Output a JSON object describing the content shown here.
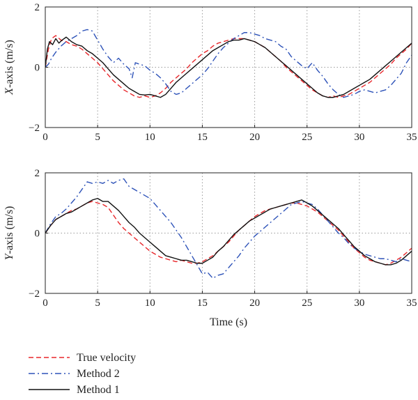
{
  "chart_data": [
    {
      "type": "line",
      "xlabel": "",
      "ylabel": "X-axis (m/s)",
      "ylabel_prefix": "X",
      "ylabel_rest": "-axis (m/s)",
      "xlim": [
        0,
        35
      ],
      "ylim": [
        -2,
        2
      ],
      "xticks": [
        0,
        5,
        10,
        15,
        20,
        25,
        30,
        35
      ],
      "yticks": [
        -2,
        0,
        2
      ],
      "grid": "dotted",
      "series": [
        {
          "name": "True velocity",
          "color": "#e8262a",
          "dash": "dashed",
          "x": [
            0,
            0.3,
            0.6,
            1,
            1.5,
            2,
            2.5,
            3,
            3.5,
            4,
            4.5,
            5,
            5.5,
            6,
            6.5,
            7,
            7.5,
            8,
            8.5,
            9,
            9.5,
            10,
            10.5,
            11,
            11.5,
            12,
            12.5,
            13,
            13.5,
            14,
            14.5,
            15,
            15.5,
            16,
            16.5,
            17,
            17.5,
            18,
            18.5,
            19,
            19.5,
            20,
            20.5,
            21,
            21.5,
            22,
            22.5,
            23,
            23.5,
            24,
            24.5,
            25,
            25.5,
            26,
            26.5,
            27,
            27.5,
            28,
            28.5,
            29,
            29.5,
            30,
            30.5,
            31,
            31.5,
            32,
            32.5,
            33,
            33.5,
            34,
            34.5,
            35
          ],
          "y": [
            0,
            0.6,
            0.95,
            1.05,
            0.9,
            0.85,
            0.75,
            0.7,
            0.6,
            0.45,
            0.3,
            0.15,
            -0.05,
            -0.25,
            -0.45,
            -0.6,
            -0.75,
            -0.85,
            -0.95,
            -1.0,
            -0.95,
            -1.0,
            -0.95,
            -0.85,
            -0.7,
            -0.5,
            -0.35,
            -0.2,
            -0.05,
            0.15,
            0.3,
            0.45,
            0.55,
            0.7,
            0.8,
            0.85,
            0.9,
            0.95,
            0.95,
            0.95,
            0.9,
            0.85,
            0.75,
            0.65,
            0.5,
            0.35,
            0.2,
            0.0,
            -0.15,
            -0.3,
            -0.45,
            -0.6,
            -0.75,
            -0.85,
            -0.95,
            -1.0,
            -0.95,
            -1.0,
            -0.95,
            -0.9,
            -0.8,
            -0.7,
            -0.6,
            -0.5,
            -0.35,
            -0.2,
            -0.05,
            0.1,
            0.3,
            0.45,
            0.6,
            0.8
          ]
        },
        {
          "name": "Method 2",
          "color": "#2d52b8",
          "dash": "dashdot",
          "x": [
            0,
            0.3,
            0.6,
            1,
            1.5,
            2,
            2.5,
            3,
            3.5,
            4,
            4.5,
            5,
            5.5,
            6,
            6.5,
            7,
            7.5,
            8,
            8.3,
            8.6,
            9,
            9.5,
            10,
            10.5,
            11,
            11.5,
            12,
            12.5,
            13,
            13.5,
            14,
            14.5,
            15,
            15.5,
            16,
            16.5,
            17,
            17.5,
            18,
            18.5,
            19,
            19.5,
            20,
            20.5,
            21,
            21.5,
            22,
            22.5,
            23,
            23.5,
            24,
            24.5,
            25,
            25.5,
            26,
            26.5,
            27,
            27.5,
            28,
            28.5,
            29,
            29.5,
            30,
            30.5,
            31,
            31.5,
            32,
            32.5,
            33,
            33.5,
            34,
            34.5,
            35
          ],
          "y": [
            0,
            0.1,
            0.3,
            0.5,
            0.7,
            0.85,
            0.95,
            1.05,
            1.2,
            1.25,
            1.2,
            0.9,
            0.6,
            0.35,
            0.15,
            0.3,
            0.1,
            -0.05,
            -0.35,
            0.15,
            0.1,
            0.05,
            -0.1,
            -0.2,
            -0.35,
            -0.55,
            -0.8,
            -0.9,
            -0.85,
            -0.7,
            -0.55,
            -0.4,
            -0.25,
            -0.05,
            0.2,
            0.45,
            0.65,
            0.8,
            0.95,
            1.05,
            1.15,
            1.15,
            1.1,
            1.05,
            0.95,
            0.9,
            0.85,
            0.7,
            0.6,
            0.35,
            0.2,
            0.05,
            -0.05,
            0.15,
            -0.1,
            -0.3,
            -0.55,
            -0.75,
            -0.9,
            -1.0,
            -0.95,
            -0.9,
            -0.8,
            -0.75,
            -0.8,
            -0.85,
            -0.8,
            -0.75,
            -0.6,
            -0.4,
            -0.2,
            0.15,
            0.4
          ]
        },
        {
          "name": "Method 1",
          "color": "#111111",
          "dash": "solid",
          "x": [
            0,
            0.2,
            0.4,
            0.7,
            1,
            1.3,
            1.6,
            2,
            2.5,
            3,
            3.5,
            4,
            4.5,
            5,
            5.5,
            6,
            6.5,
            7,
            7.5,
            8,
            8.5,
            9,
            9.5,
            10,
            10.5,
            11,
            11.5,
            12,
            12.5,
            13,
            13.5,
            14,
            14.5,
            15,
            15.5,
            16,
            16.5,
            17,
            17.5,
            18,
            18.5,
            19,
            19.5,
            20,
            20.5,
            21,
            21.5,
            22,
            22.5,
            23,
            23.5,
            24,
            24.5,
            25,
            25.5,
            26,
            26.5,
            27,
            27.5,
            28,
            28.5,
            29,
            29.5,
            30,
            30.5,
            31,
            31.5,
            32,
            32.5,
            33,
            33.5,
            34,
            34.5,
            35
          ],
          "y": [
            0,
            0.6,
            0.85,
            0.75,
            0.95,
            0.8,
            0.9,
            1.0,
            0.85,
            0.75,
            0.7,
            0.55,
            0.45,
            0.3,
            0.15,
            -0.05,
            -0.25,
            -0.4,
            -0.55,
            -0.7,
            -0.8,
            -0.9,
            -0.92,
            -0.9,
            -0.95,
            -1.0,
            -0.9,
            -0.7,
            -0.5,
            -0.35,
            -0.2,
            -0.05,
            0.1,
            0.25,
            0.4,
            0.55,
            0.65,
            0.75,
            0.85,
            0.9,
            0.9,
            0.95,
            0.9,
            0.85,
            0.75,
            0.65,
            0.5,
            0.35,
            0.2,
            0.05,
            -0.1,
            -0.25,
            -0.4,
            -0.55,
            -0.7,
            -0.85,
            -0.95,
            -1.0,
            -1.0,
            -0.95,
            -0.9,
            -0.8,
            -0.7,
            -0.6,
            -0.5,
            -0.4,
            -0.25,
            -0.1,
            0.05,
            0.2,
            0.35,
            0.5,
            0.65,
            0.8
          ]
        }
      ]
    },
    {
      "type": "line",
      "xlabel": "Time (s)",
      "ylabel": "Y-axis (m/s)",
      "ylabel_prefix": "Y",
      "ylabel_rest": "-axis (m/s)",
      "xlim": [
        0,
        35
      ],
      "ylim": [
        -2,
        2
      ],
      "xticks": [
        0,
        5,
        10,
        15,
        20,
        25,
        30,
        35
      ],
      "yticks": [
        -2,
        0,
        2
      ],
      "grid": "dotted",
      "series": [
        {
          "name": "True velocity",
          "color": "#e8262a",
          "dash": "dashed",
          "x": [
            0,
            0.5,
            1,
            1.5,
            2,
            2.5,
            3,
            3.5,
            4,
            4.5,
            5,
            5.5,
            6,
            6.5,
            7,
            7.5,
            8,
            8.5,
            9,
            9.5,
            10,
            10.5,
            11,
            11.5,
            12,
            12.5,
            13,
            13.5,
            14,
            14.5,
            15,
            15.5,
            16,
            16.5,
            17,
            17.5,
            18,
            18.5,
            19,
            19.5,
            20,
            20.5,
            21,
            21.5,
            22,
            22.5,
            23,
            23.5,
            24,
            24.5,
            25,
            25.5,
            26,
            26.5,
            27,
            27.5,
            28,
            28.5,
            29,
            29.5,
            30,
            30.5,
            31,
            31.5,
            32,
            32.5,
            33,
            33.5,
            34,
            34.5,
            35
          ],
          "y": [
            0,
            0.25,
            0.45,
            0.55,
            0.65,
            0.75,
            0.8,
            0.9,
            1.0,
            1.05,
            1.0,
            0.95,
            0.85,
            0.6,
            0.35,
            0.15,
            0.0,
            -0.15,
            -0.3,
            -0.45,
            -0.6,
            -0.7,
            -0.8,
            -0.85,
            -0.9,
            -0.95,
            -0.9,
            -0.95,
            -1.0,
            -1.0,
            -0.95,
            -0.85,
            -0.75,
            -0.6,
            -0.45,
            -0.3,
            -0.1,
            0.1,
            0.25,
            0.4,
            0.55,
            0.65,
            0.75,
            0.8,
            0.85,
            0.9,
            0.95,
            1.0,
            1.0,
            0.95,
            0.9,
            0.8,
            0.7,
            0.55,
            0.4,
            0.25,
            0.1,
            -0.1,
            -0.3,
            -0.5,
            -0.65,
            -0.8,
            -0.9,
            -0.95,
            -1.0,
            -1.05,
            -1.0,
            -0.9,
            -0.8,
            -0.65,
            -0.5
          ]
        },
        {
          "name": "Method 2",
          "color": "#2d52b8",
          "dash": "dashdot",
          "x": [
            0,
            0.5,
            1,
            1.5,
            2,
            2.5,
            3,
            3.5,
            4,
            4.5,
            5,
            5.5,
            6,
            6.5,
            7,
            7.5,
            8,
            8.5,
            9,
            9.5,
            10,
            10.5,
            11,
            11.5,
            12,
            12.5,
            13,
            13.5,
            14,
            14.5,
            15,
            15.5,
            16,
            16.5,
            17,
            17.5,
            18,
            18.5,
            19,
            19.5,
            20,
            20.5,
            21,
            21.5,
            22,
            22.5,
            23,
            23.5,
            24,
            24.5,
            25,
            25.5,
            26,
            26.5,
            27,
            27.5,
            28,
            28.5,
            29,
            29.5,
            30,
            30.5,
            31,
            31.5,
            32,
            32.5,
            33,
            33.5,
            34,
            34.5,
            35
          ],
          "y": [
            0,
            0.3,
            0.55,
            0.65,
            0.8,
            1.0,
            1.2,
            1.45,
            1.7,
            1.65,
            1.7,
            1.65,
            1.75,
            1.65,
            1.75,
            1.8,
            1.55,
            1.45,
            1.35,
            1.25,
            1.15,
            0.95,
            0.75,
            0.55,
            0.35,
            0.1,
            -0.15,
            -0.45,
            -0.75,
            -1.05,
            -1.35,
            -1.3,
            -1.5,
            -1.4,
            -1.35,
            -1.15,
            -0.95,
            -0.75,
            -0.5,
            -0.3,
            -0.1,
            0.05,
            0.2,
            0.35,
            0.5,
            0.65,
            0.8,
            0.95,
            1.0,
            1.05,
            1.0,
            0.95,
            0.8,
            0.6,
            0.4,
            0.2,
            0.0,
            -0.15,
            -0.35,
            -0.5,
            -0.6,
            -0.7,
            -0.75,
            -0.8,
            -0.85,
            -0.85,
            -0.9,
            -0.95,
            -0.85,
            -0.9,
            -0.95
          ]
        },
        {
          "name": "Method 1",
          "color": "#111111",
          "dash": "solid",
          "x": [
            0,
            0.5,
            1,
            1.5,
            2,
            2.5,
            3,
            3.5,
            4,
            4.5,
            5,
            5.5,
            6,
            6.5,
            7,
            7.5,
            8,
            8.5,
            9,
            9.5,
            10,
            10.5,
            11,
            11.5,
            12,
            12.5,
            13,
            13.5,
            14,
            14.5,
            15,
            15.5,
            16,
            16.5,
            17,
            17.5,
            18,
            18.5,
            19,
            19.5,
            20,
            20.5,
            21,
            21.5,
            22,
            22.5,
            23,
            23.5,
            24,
            24.5,
            25,
            25.5,
            26,
            26.5,
            27,
            27.5,
            28,
            28.5,
            29,
            29.5,
            30,
            30.5,
            31,
            31.5,
            32,
            32.5,
            33,
            33.5,
            34,
            34.5,
            35
          ],
          "y": [
            0,
            0.25,
            0.45,
            0.55,
            0.65,
            0.7,
            0.8,
            0.9,
            1.0,
            1.1,
            1.15,
            1.05,
            1.05,
            0.9,
            0.75,
            0.55,
            0.35,
            0.2,
            0.0,
            -0.15,
            -0.3,
            -0.45,
            -0.6,
            -0.75,
            -0.8,
            -0.85,
            -0.9,
            -0.9,
            -0.95,
            -1.0,
            -1.0,
            -0.9,
            -0.8,
            -0.6,
            -0.45,
            -0.25,
            -0.05,
            0.1,
            0.25,
            0.4,
            0.5,
            0.6,
            0.7,
            0.8,
            0.85,
            0.9,
            0.95,
            1.0,
            1.05,
            1.1,
            1.0,
            0.9,
            0.75,
            0.6,
            0.45,
            0.3,
            0.15,
            -0.05,
            -0.25,
            -0.45,
            -0.6,
            -0.75,
            -0.85,
            -0.95,
            -1.0,
            -1.05,
            -1.05,
            -1.0,
            -0.9,
            -0.75,
            -0.6
          ]
        }
      ]
    }
  ],
  "legend": {
    "items": [
      {
        "label": "True velocity",
        "color": "#e8262a",
        "dash": "dashed"
      },
      {
        "label": "Method 2",
        "color": "#2d52b8",
        "dash": "dashdot"
      },
      {
        "label": "Method 1",
        "color": "#111111",
        "dash": "solid"
      }
    ]
  }
}
